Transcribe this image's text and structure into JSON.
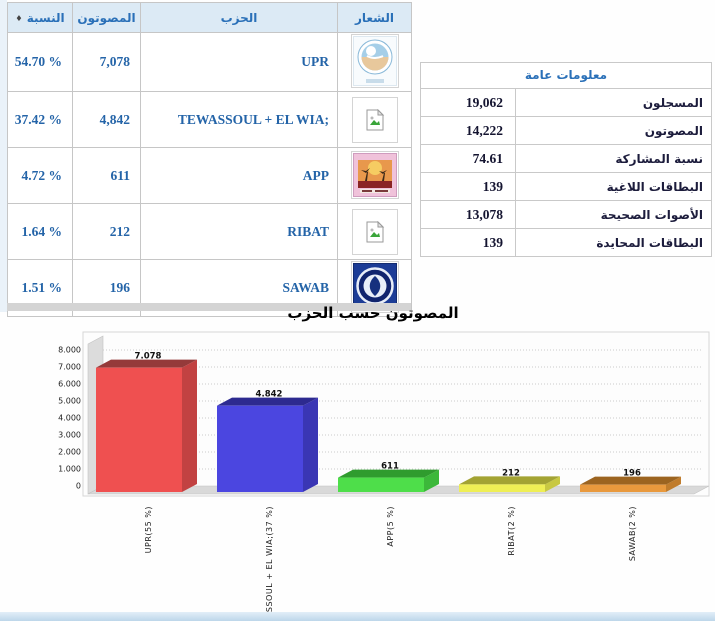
{
  "results_table": {
    "headers": {
      "percent": "النسبة",
      "voters": "المصوتون",
      "party": "الحزب",
      "logo": "الشعار"
    },
    "sort_icon": "♦",
    "rows": [
      {
        "percent": "54.70 %",
        "voters": "7,078",
        "party": "UPR",
        "logo": "upr-party-logo"
      },
      {
        "percent": "37.42 %",
        "voters": "4,842",
        "party": "TEWASSOUL + EL WIA;",
        "logo": "broken-image"
      },
      {
        "percent": "4.72 %",
        "voters": "611",
        "party": "APP",
        "logo": "app-party-logo"
      },
      {
        "percent": "1.64 %",
        "voters": "212",
        "party": "RIBAT",
        "logo": "broken-image"
      },
      {
        "percent": "1.51 %",
        "voters": "196",
        "party": "SAWAB",
        "logo": "sawab-party-logo"
      }
    ]
  },
  "info_table": {
    "title": "معلومات عامة",
    "rows": [
      {
        "label": "المسجلون",
        "value": "19,062"
      },
      {
        "label": "المصوتون",
        "value": "14,222"
      },
      {
        "label": "نسبة المشاركة",
        "value": "74.61"
      },
      {
        "label": "البطاقات اللاغية",
        "value": "139"
      },
      {
        "label": "الأصوات الصحيحة",
        "value": "13,078"
      },
      {
        "label": "البطاقات المحايدة",
        "value": "139"
      }
    ]
  },
  "chart_data": {
    "type": "bar",
    "title": "المصوتون حسب الحزب",
    "categories": [
      "UPR(55 %)",
      "TEWASSOUL + EL WIA;(37 %)",
      "APP(5 %)",
      "RIBAT(2 %)",
      "SAWAB(2 %)"
    ],
    "values": [
      7078,
      4842,
      611,
      212,
      196
    ],
    "value_labels": [
      "7.078",
      "4.842",
      "611",
      "212",
      "196"
    ],
    "bar_colors": [
      {
        "face": "#ef5050",
        "top": "#953a3a",
        "side": "#c24242"
      },
      {
        "face": "#4b46e0",
        "top": "#2d2a90",
        "side": "#3a36b4"
      },
      {
        "face": "#4ede4a",
        "top": "#2f9c2e",
        "side": "#3cb83a"
      },
      {
        "face": "#efef55",
        "top": "#a3a333",
        "side": "#c8c842"
      },
      {
        "face": "#e9993d",
        "top": "#9c6420",
        "side": "#c07c2c"
      }
    ],
    "xlabel": "",
    "ylabel": "",
    "ylim": [
      0,
      8000
    ],
    "ytick_labels": [
      "0",
      "1.000",
      "2.000",
      "3.000",
      "4.000",
      "5.000",
      "6.000",
      "7.000",
      "8.000"
    ],
    "grid": true,
    "legend": "none"
  },
  "colors": {
    "header_bg": "#dceaf5",
    "link_blue": "#2a70b8",
    "table_border": "#c6c6c6",
    "bottom_bar": "#bdd6ea"
  }
}
